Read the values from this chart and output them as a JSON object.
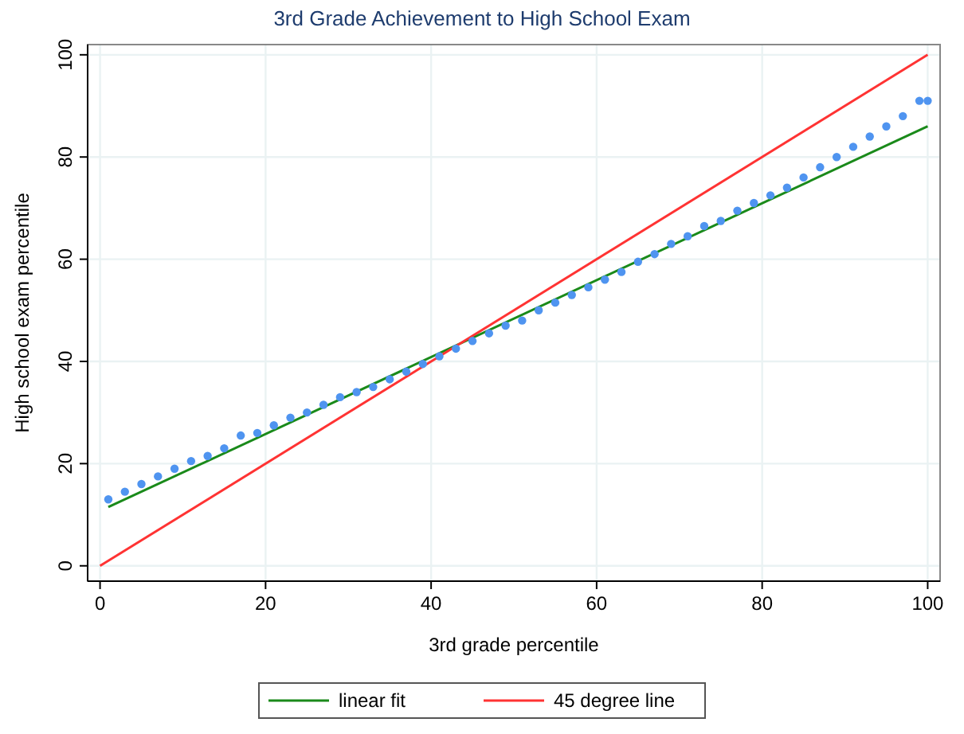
{
  "chart_data": {
    "type": "scatter",
    "title": "3rd Grade Achievement to High School Exam",
    "xlabel": "3rd grade percentile",
    "ylabel": "High school exam percentile",
    "xlim": [
      -1.5,
      101.5
    ],
    "ylim": [
      -3,
      102
    ],
    "xticks": [
      0,
      20,
      40,
      60,
      80,
      100
    ],
    "yticks": [
      0,
      20,
      40,
      60,
      80,
      100
    ],
    "grid": true,
    "legend": "bottom",
    "series": [
      {
        "marker": "circle",
        "color": "#4f94f0",
        "x": [
          1,
          3,
          5,
          7,
          9,
          11,
          13,
          15,
          17,
          19,
          21,
          23,
          25,
          27,
          29,
          31,
          33,
          35,
          37,
          39,
          41,
          43,
          45,
          47,
          49,
          51,
          53,
          55,
          57,
          59,
          61,
          63,
          65,
          67,
          69,
          71,
          73,
          75,
          77,
          79,
          81,
          83,
          85,
          87,
          89,
          91,
          93,
          95,
          97,
          99,
          100
        ],
        "values": [
          13,
          14.5,
          16,
          17.5,
          19,
          20.5,
          21.5,
          23,
          25.5,
          26,
          27.5,
          29,
          30,
          31.5,
          33,
          34,
          35,
          36.5,
          38,
          39.5,
          41,
          42.5,
          44,
          45.5,
          47,
          48,
          50,
          51.5,
          53,
          54.5,
          56,
          57.5,
          59.5,
          61,
          63,
          64.5,
          66.5,
          67.5,
          69.5,
          71,
          72.5,
          74,
          76,
          78,
          80,
          82,
          84,
          86,
          88,
          91,
          91
        ]
      },
      {
        "type": "line",
        "name": "linear fit",
        "color": "#1a8a1a",
        "x": [
          1,
          100
        ],
        "values": [
          11.5,
          86
        ]
      },
      {
        "type": "line",
        "name": "45 degree line",
        "color": "#ff3333",
        "x": [
          0,
          100
        ],
        "values": [
          0,
          100
        ]
      }
    ]
  }
}
